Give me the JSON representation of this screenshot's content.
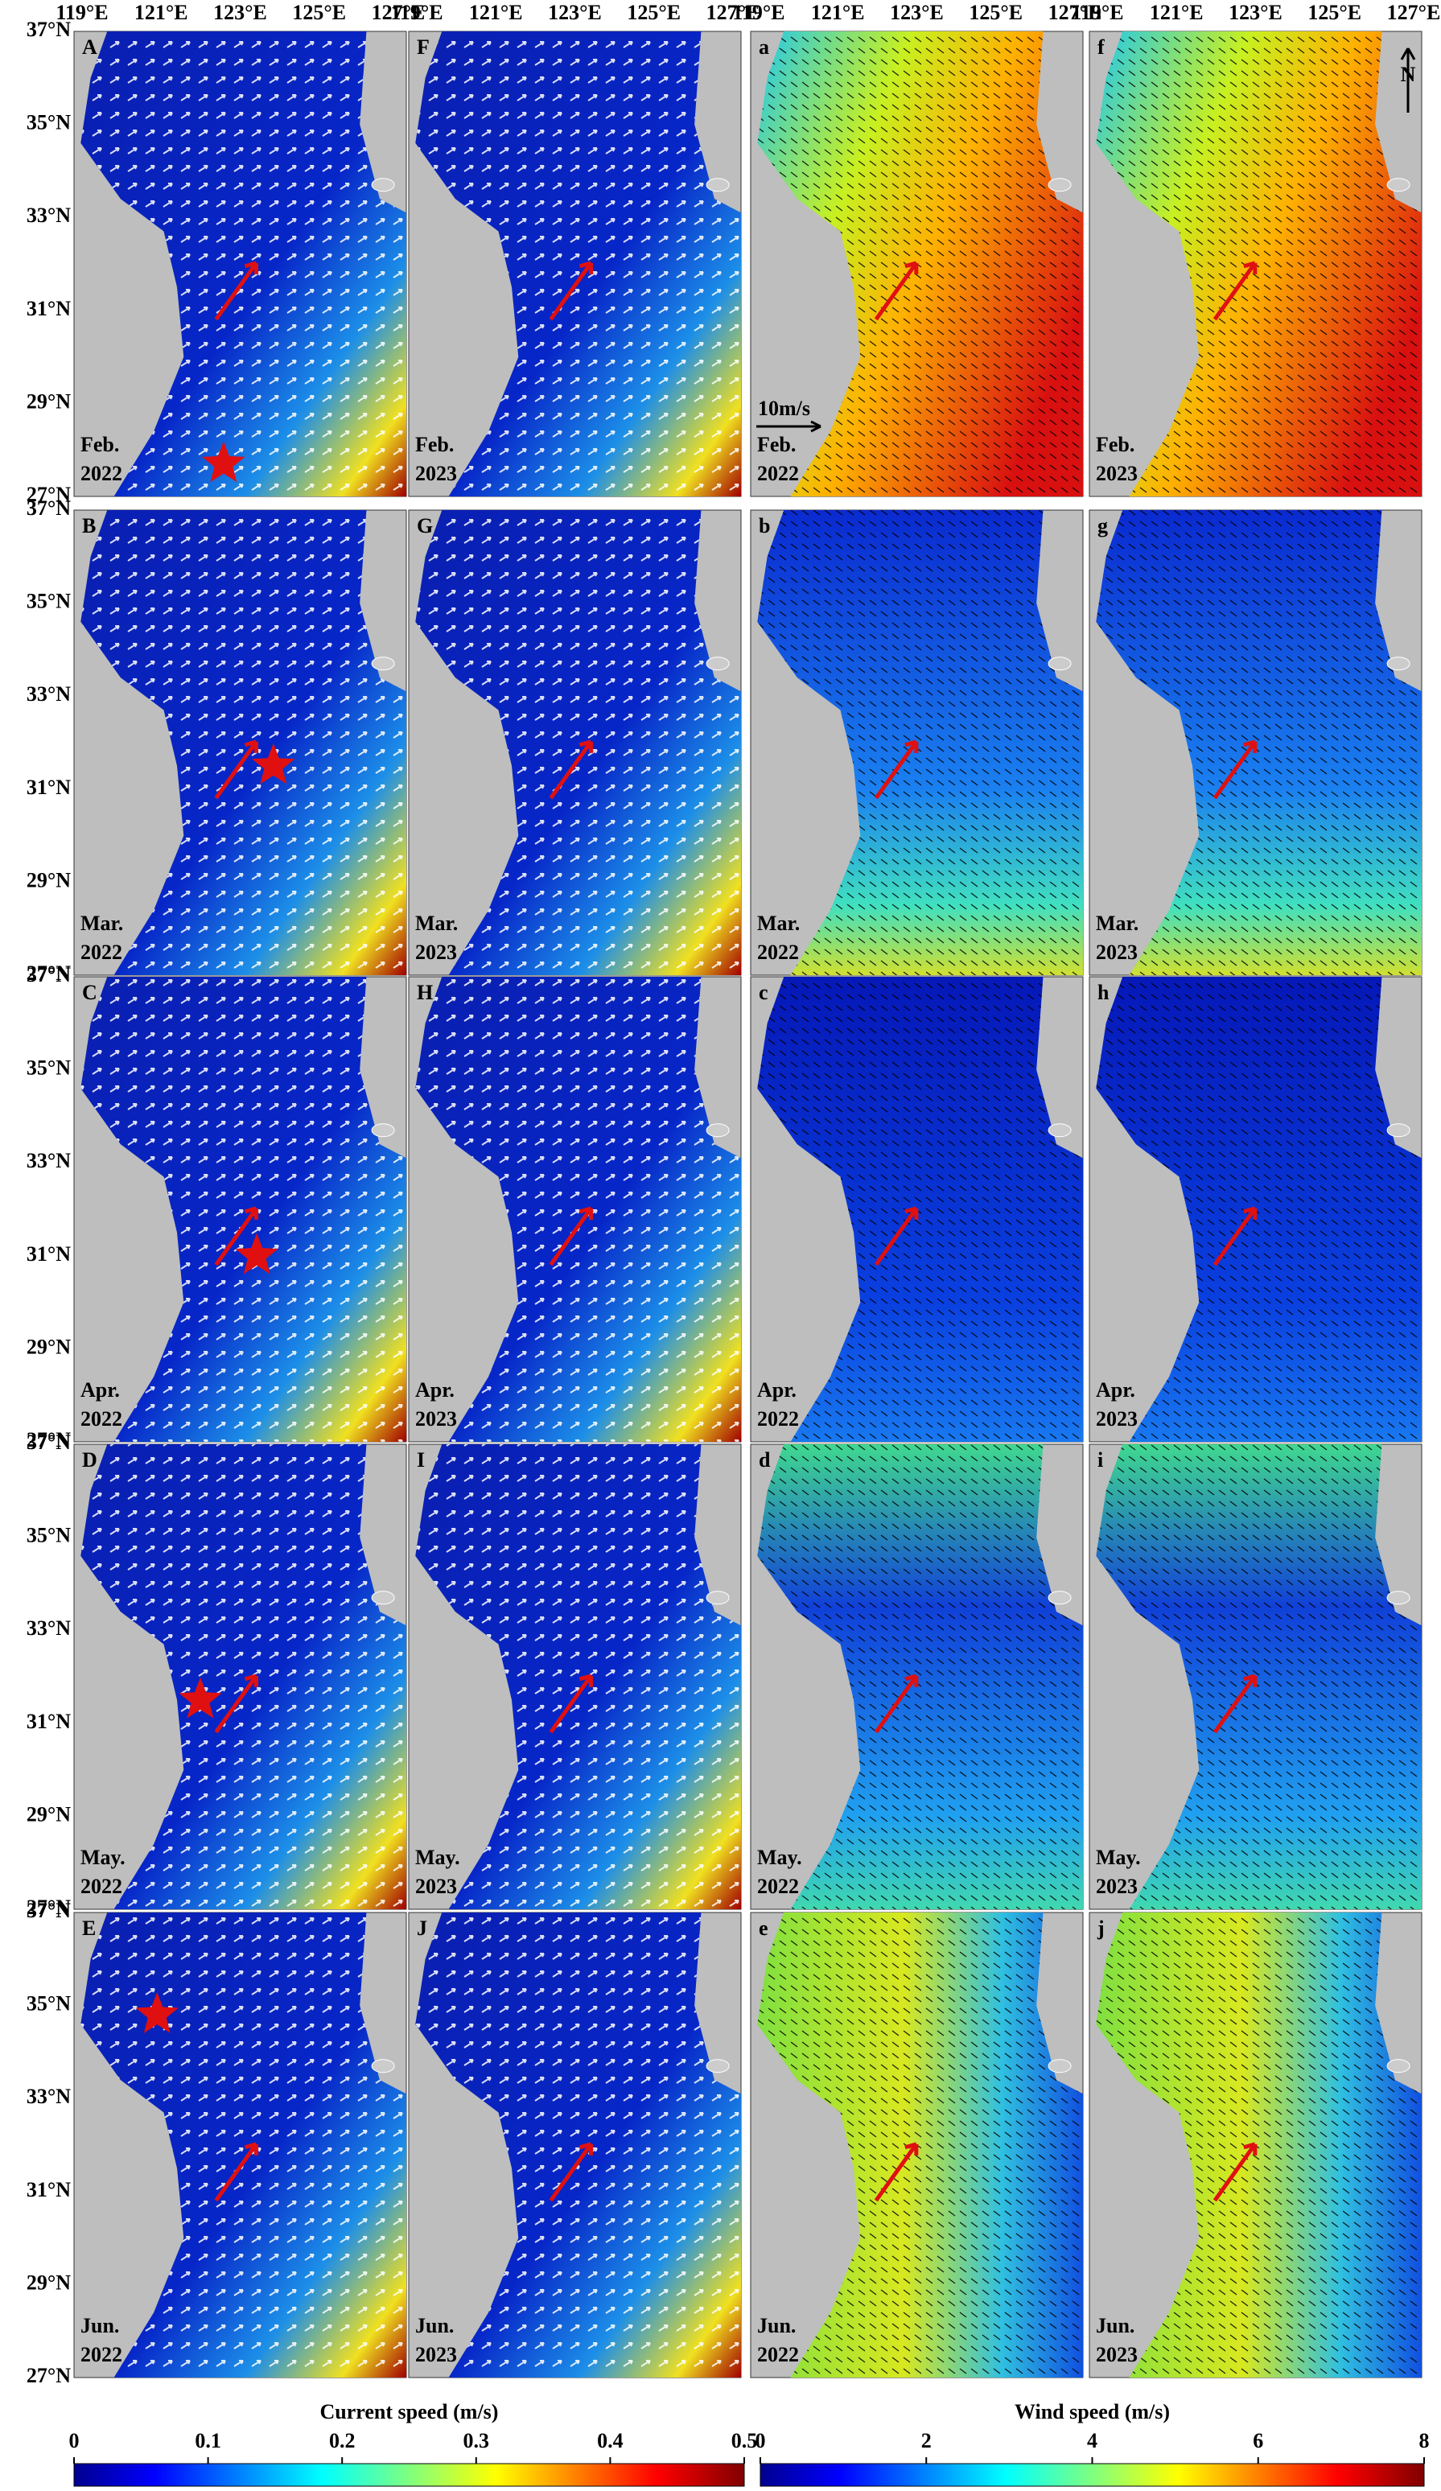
{
  "lon_labels": [
    "119°E",
    "121°E",
    "123°E",
    "125°E",
    "127°E"
  ],
  "lat_labels": [
    "37°N",
    "35°N",
    "33°N",
    "31°N",
    "29°N",
    "27°N"
  ],
  "rows": [
    {
      "month": "Feb.",
      "panels": [
        {
          "letter": "A",
          "year": "2022"
        },
        {
          "letter": "F",
          "year": "2023"
        },
        {
          "letter": "a",
          "year": "2022"
        },
        {
          "letter": "f",
          "year": "2023"
        }
      ]
    },
    {
      "month": "Mar.",
      "panels": [
        {
          "letter": "B",
          "year": "2022"
        },
        {
          "letter": "G",
          "year": "2023"
        },
        {
          "letter": "b",
          "year": "2022"
        },
        {
          "letter": "g",
          "year": "2023"
        }
      ]
    },
    {
      "month": "Apr.",
      "panels": [
        {
          "letter": "C",
          "year": "2022"
        },
        {
          "letter": "H",
          "year": "2023"
        },
        {
          "letter": "c",
          "year": "2022"
        },
        {
          "letter": "h",
          "year": "2023"
        }
      ]
    },
    {
      "month": "May.",
      "panels": [
        {
          "letter": "D",
          "year": "2022"
        },
        {
          "letter": "I",
          "year": "2023"
        },
        {
          "letter": "d",
          "year": "2022"
        },
        {
          "letter": "i",
          "year": "2023"
        }
      ]
    },
    {
      "month": "Jun.",
      "panels": [
        {
          "letter": "E",
          "year": "2022"
        },
        {
          "letter": "J",
          "year": "2023"
        },
        {
          "letter": "e",
          "year": "2022"
        },
        {
          "letter": "j",
          "year": "2023"
        }
      ]
    }
  ],
  "wind_scale": "10m/s",
  "north": "N",
  "colorbars": [
    {
      "title": "Current speed (m/s)",
      "lim": [
        0,
        0.5
      ],
      "ticks": [
        0,
        0.1,
        0.2,
        0.3,
        0.4,
        0.5
      ]
    },
    {
      "title": "Wind speed (m/s)",
      "lim": [
        0,
        8
      ],
      "ticks": [
        0,
        2,
        4,
        6,
        8
      ]
    }
  ]
}
